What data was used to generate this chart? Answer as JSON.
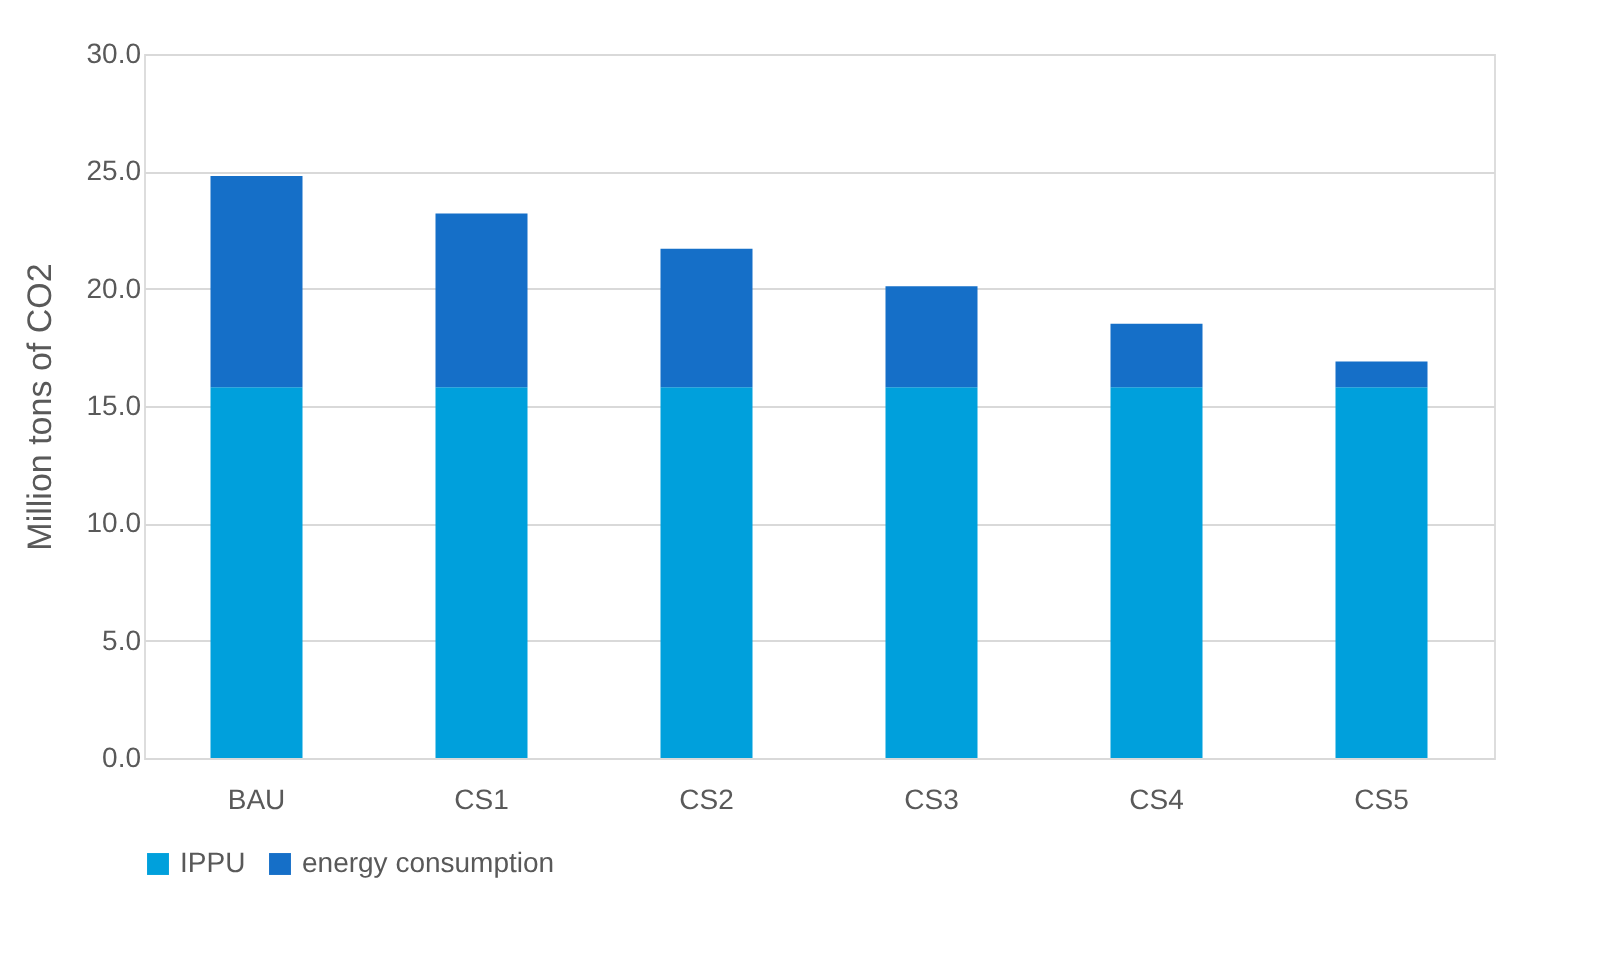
{
  "chart_data": {
    "type": "bar",
    "stacked": true,
    "ylabel": "Million tons of CO2",
    "categories": [
      "BAU",
      "CS1",
      "CS2",
      "CS3",
      "CS4",
      "CS5"
    ],
    "series": [
      {
        "name": "IPPU",
        "color": "#00a0dc",
        "values": [
          15.8,
          15.8,
          15.8,
          15.8,
          15.8,
          15.8
        ]
      },
      {
        "name": "energy consumption",
        "color": "#156fc8",
        "values": [
          9.0,
          7.4,
          5.9,
          4.3,
          2.7,
          1.1
        ]
      }
    ],
    "ylim": [
      0,
      30
    ],
    "yticks": [
      {
        "value": 0,
        "label": "0.0"
      },
      {
        "value": 5,
        "label": "5.0"
      },
      {
        "value": 10,
        "label": "10.0"
      },
      {
        "value": 15,
        "label": "15.0"
      },
      {
        "value": 20,
        "label": "20.0"
      },
      {
        "value": 25,
        "label": "25.0"
      },
      {
        "value": 30,
        "label": "30.0"
      }
    ],
    "grid": "y",
    "legend": "bottom"
  }
}
